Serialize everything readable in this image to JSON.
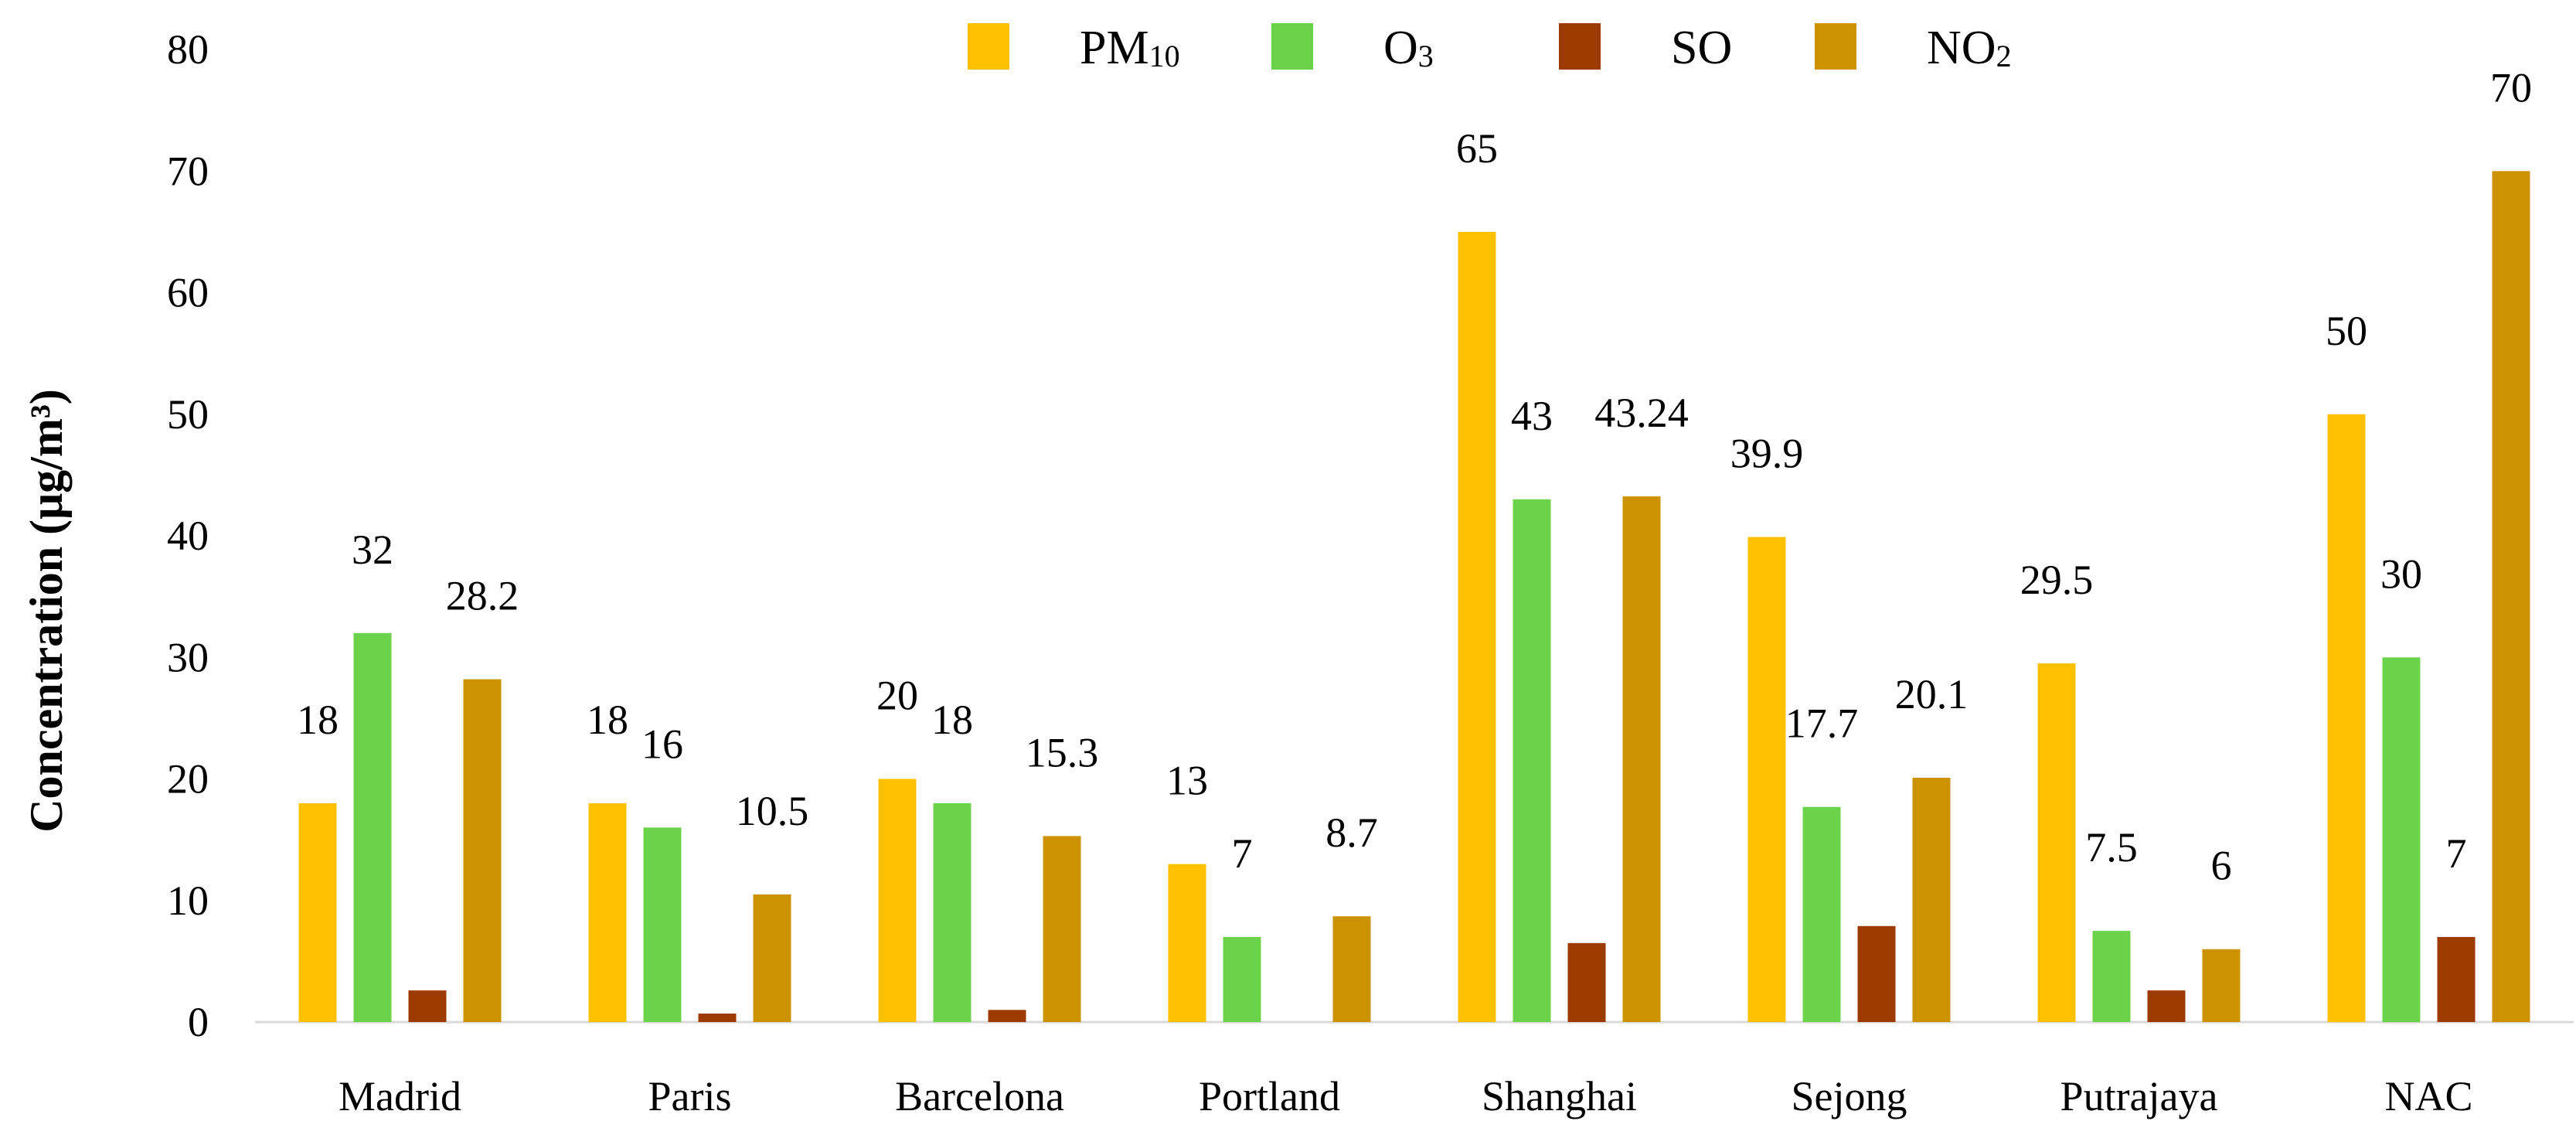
{
  "chart_data": {
    "type": "bar",
    "title": "",
    "xlabel": "",
    "ylabel": "Concentration (μg/m³)",
    "ylim": [
      0,
      80
    ],
    "yticks": [
      0,
      10,
      20,
      30,
      40,
      50,
      60,
      70,
      80
    ],
    "grid": false,
    "legend_position": "top",
    "categories": [
      "Madrid",
      "Paris",
      "Barcelona",
      "Portland",
      "Shanghai",
      "Sejong",
      "Putrajaya",
      "NAC"
    ],
    "series": [
      {
        "name": "PM10",
        "name_main": "PM",
        "name_sub": "10",
        "color": "#FFC000",
        "values": [
          18,
          18,
          20,
          13,
          65,
          39.9,
          29.5,
          50
        ],
        "labels": [
          "18",
          "18",
          "20",
          "13",
          "65",
          "39.9",
          "29.5",
          "50"
        ]
      },
      {
        "name": "O3",
        "name_main": "O",
        "name_sub": "3",
        "color": "#6BD34A",
        "values": [
          32,
          16,
          18,
          7,
          43,
          17.7,
          7.5,
          30
        ],
        "labels": [
          "32",
          "16",
          "18",
          "7",
          "43",
          "17.7",
          "7.5",
          "30"
        ]
      },
      {
        "name": "SO",
        "name_main": "SO",
        "name_sub": "",
        "color": "#9C3A00",
        "values": [
          2.6,
          0.7,
          1.0,
          0,
          6.5,
          7.9,
          2.6,
          7
        ],
        "labels": [
          "",
          "",
          "",
          "",
          "",
          "",
          "",
          "7"
        ]
      },
      {
        "name": "NO2",
        "name_main": "NO",
        "name_sub": "2",
        "color": "#CC9200",
        "values": [
          28.2,
          10.5,
          15.3,
          8.7,
          43.24,
          20.1,
          6,
          70
        ],
        "labels": [
          "28.2",
          "10.5",
          "15.3",
          "8.7",
          "43.24",
          "20.1",
          "6",
          "70"
        ]
      }
    ]
  }
}
